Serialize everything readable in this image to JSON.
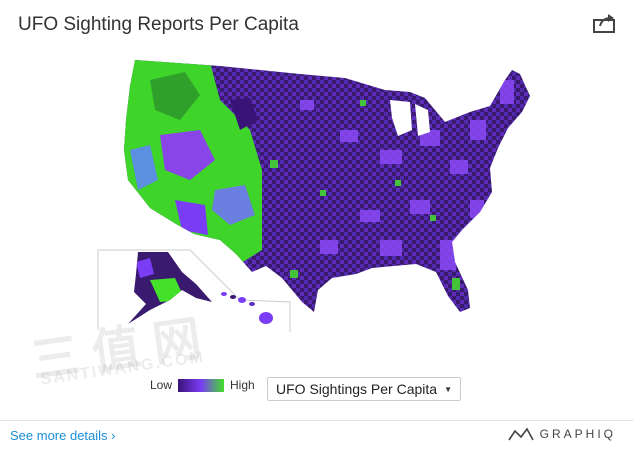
{
  "header": {
    "title": "UFO Sighting Reports Per Capita",
    "share_icon": "share-icon"
  },
  "legend": {
    "low_label": "Low",
    "high_label": "High",
    "colors": {
      "low": "#3a1378",
      "mid": "#7a3cf5",
      "high": "#44e02a",
      "alt": "#5b8fe0"
    }
  },
  "metric_select": {
    "selected": "UFO Sightings Per Capita"
  },
  "footer": {
    "link_text": "See more details ›",
    "brand": "GRAPHIQ"
  },
  "watermark": {
    "main": "三 值 网",
    "sub": "SANTIWANG.COM"
  }
}
